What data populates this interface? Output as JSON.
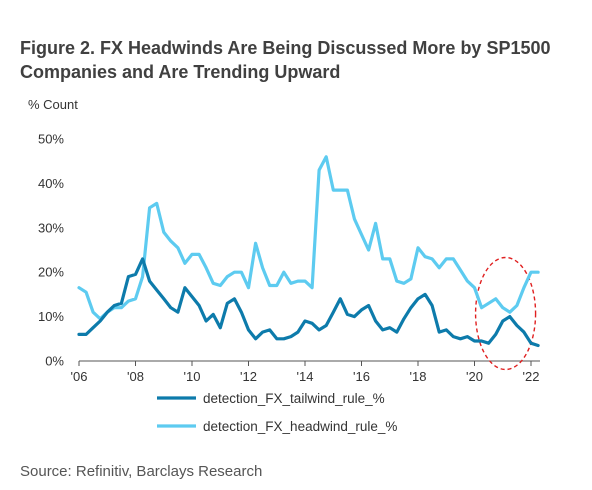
{
  "title": "Figure 2. FX Headwinds Are Being Discussed More by SP1500 Companies and Are Trending Upward",
  "source": "Source: Refinitiv, Barclays Research",
  "chart_data": {
    "type": "line",
    "title": "Figure 2. FX Headwinds Are Being Discussed More by SP1500 Companies and Are Trending Upward",
    "ylabel": "% Count",
    "xlabel": "",
    "ylim": [
      0,
      50
    ],
    "xlim": [
      2006,
      2022.5
    ],
    "yticks": [
      0,
      10,
      20,
      30,
      40,
      50
    ],
    "ytick_labels": [
      "0%",
      "10%",
      "20%",
      "30%",
      "40%",
      "50%"
    ],
    "xticks": [
      2006,
      2008,
      2010,
      2012,
      2014,
      2016,
      2018,
      2020,
      2022
    ],
    "xtick_labels": [
      "'06",
      "'08",
      "'10",
      "'12",
      "'14",
      "'16",
      "'18",
      "'20",
      "'22"
    ],
    "grid": false,
    "legend_position": "bottom",
    "annotation": "dashed red ellipse around 2021-2022",
    "series": [
      {
        "name": "detection_FX_tailwind_rule_%",
        "color": "#0d7bab",
        "x": [
          2006.0,
          2006.25,
          2006.5,
          2006.75,
          2007.0,
          2007.25,
          2007.5,
          2007.75,
          2008.0,
          2008.25,
          2008.5,
          2008.75,
          2009.0,
          2009.25,
          2009.5,
          2009.75,
          2010.0,
          2010.25,
          2010.5,
          2010.75,
          2011.0,
          2011.25,
          2011.5,
          2011.75,
          2012.0,
          2012.25,
          2012.5,
          2012.75,
          2013.0,
          2013.25,
          2013.5,
          2013.75,
          2014.0,
          2014.25,
          2014.5,
          2014.75,
          2015.0,
          2015.25,
          2015.5,
          2015.75,
          2016.0,
          2016.25,
          2016.5,
          2016.75,
          2017.0,
          2017.25,
          2017.5,
          2017.75,
          2018.0,
          2018.25,
          2018.5,
          2018.75,
          2019.0,
          2019.25,
          2019.5,
          2019.75,
          2020.0,
          2020.25,
          2020.5,
          2020.75,
          2021.0,
          2021.25,
          2021.5,
          2021.75,
          2022.0,
          2022.25
        ],
        "y": [
          6,
          6,
          7.5,
          9,
          11,
          12.5,
          13,
          19,
          19.5,
          23,
          18,
          16,
          14,
          12,
          11,
          16.5,
          14.5,
          12.5,
          9,
          10.5,
          7.5,
          13,
          14,
          11,
          7,
          5,
          6.5,
          7,
          5,
          5,
          5.5,
          6.5,
          9,
          8.5,
          7,
          8,
          11,
          14,
          10.5,
          10,
          11.5,
          12.5,
          9,
          7,
          7.5,
          6.5,
          9.5,
          12,
          14,
          15,
          12.5,
          6.5,
          7,
          5.5,
          5,
          5.5,
          4.5,
          4.5,
          4,
          6,
          9,
          10,
          8,
          6.5,
          4,
          3.5
        ]
      },
      {
        "name": "detection_FX_headwind_rule_%",
        "color": "#5dcbf0",
        "x": [
          2006.0,
          2006.25,
          2006.5,
          2006.75,
          2007.0,
          2007.25,
          2007.5,
          2007.75,
          2008.0,
          2008.25,
          2008.5,
          2008.75,
          2009.0,
          2009.25,
          2009.5,
          2009.75,
          2010.0,
          2010.25,
          2010.5,
          2010.75,
          2011.0,
          2011.25,
          2011.5,
          2011.75,
          2012.0,
          2012.25,
          2012.5,
          2012.75,
          2013.0,
          2013.25,
          2013.5,
          2013.75,
          2014.0,
          2014.25,
          2014.5,
          2014.75,
          2015.0,
          2015.25,
          2015.5,
          2015.75,
          2016.0,
          2016.25,
          2016.5,
          2016.75,
          2017.0,
          2017.25,
          2017.5,
          2017.75,
          2018.0,
          2018.25,
          2018.5,
          2018.75,
          2019.0,
          2019.25,
          2019.5,
          2019.75,
          2020.0,
          2020.25,
          2020.5,
          2020.75,
          2021.0,
          2021.25,
          2021.5,
          2021.75,
          2022.0,
          2022.25
        ],
        "y": [
          16.5,
          15.5,
          11,
          9.5,
          11,
          12,
          12,
          13.5,
          14,
          19,
          34.5,
          35.5,
          29,
          27,
          25.5,
          22,
          24,
          24,
          21,
          17.5,
          17,
          19,
          20,
          20,
          16.5,
          26.5,
          21,
          17,
          17,
          20,
          17.5,
          18,
          18,
          16.5,
          43,
          46,
          38.5,
          38.5,
          38.5,
          32,
          28.5,
          25,
          31,
          23,
          23,
          18,
          17.5,
          18.5,
          25.5,
          23.5,
          23,
          21,
          23,
          23,
          20.5,
          18,
          16.5,
          12,
          13,
          14,
          12,
          11,
          12.5,
          16.5,
          20,
          20
        ]
      }
    ]
  }
}
